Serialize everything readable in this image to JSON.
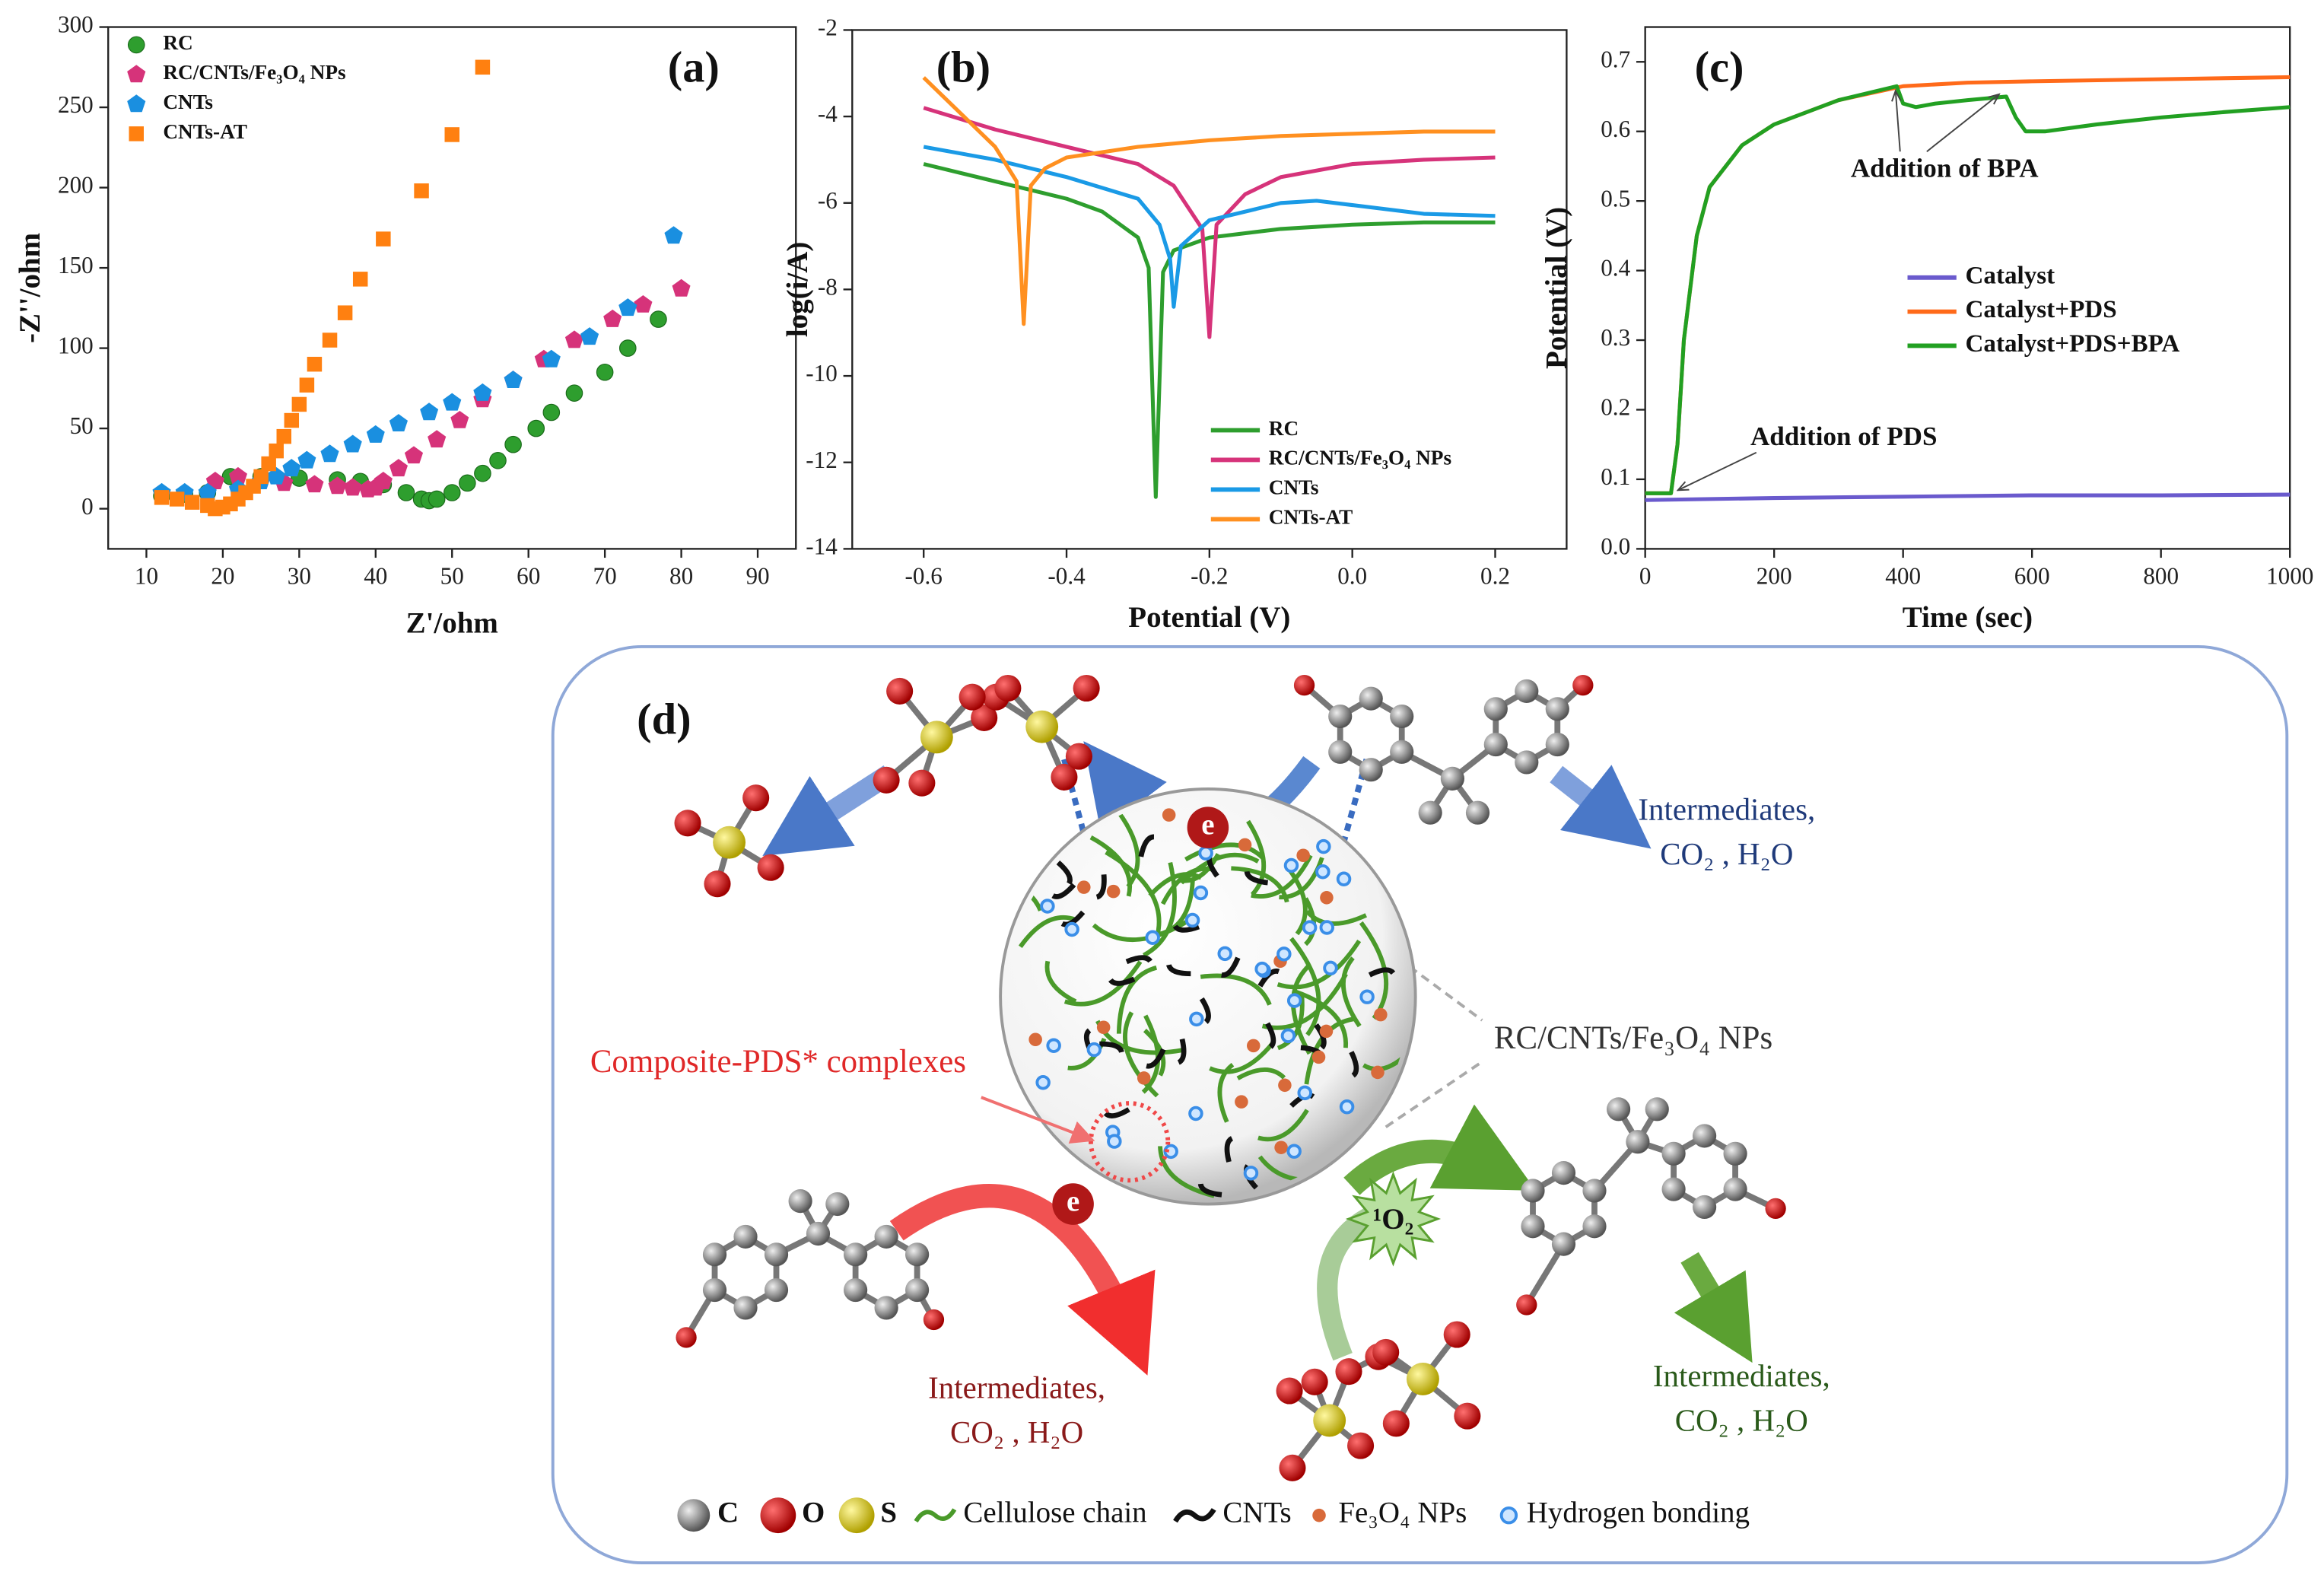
{
  "chart_data": [
    {
      "type": "scatter",
      "panel_label": "(a)",
      "x_label": "Z'/ohm",
      "y_label": "-Z''/ohm",
      "xlim": [
        5,
        95
      ],
      "xticks": [
        10,
        20,
        30,
        40,
        50,
        60,
        70,
        80,
        90
      ],
      "ylim": [
        -25,
        300
      ],
      "yticks": [
        0,
        50,
        100,
        150,
        200,
        250,
        300
      ],
      "legend": "upper left",
      "series": [
        {
          "name": "RC",
          "color": "#2e9e2e",
          "marker": "circle",
          "x": [
            12,
            15,
            18,
            21,
            25,
            30,
            35,
            38,
            41,
            44,
            46,
            47,
            48,
            50,
            52,
            54,
            56,
            58,
            61,
            63,
            66,
            70,
            73,
            77
          ],
          "values": [
            8,
            9,
            10,
            20,
            20,
            19,
            18,
            17,
            15,
            10,
            6,
            5,
            6,
            10,
            16,
            22,
            30,
            40,
            50,
            60,
            72,
            85,
            100,
            118
          ]
        },
        {
          "name": "RC/CNTs/Fe₃O₄ NPs",
          "color": "#d6337a",
          "marker": "pentagon",
          "x": [
            19,
            22,
            25,
            28,
            32,
            35,
            37,
            39,
            40,
            41,
            43,
            45,
            48,
            51,
            54,
            58,
            62,
            66,
            71,
            75,
            80
          ],
          "values": [
            17,
            20,
            17,
            16,
            15,
            14,
            13,
            12,
            13,
            17,
            25,
            33,
            43,
            55,
            68,
            80,
            93,
            105,
            118,
            127,
            137
          ]
        },
        {
          "name": "CNTs",
          "color": "#1a8fe0",
          "marker": "pentagon",
          "x": [
            12,
            15,
            18,
            22,
            25,
            27,
            29,
            31,
            34,
            37,
            40,
            43,
            47,
            50,
            54,
            58,
            63,
            68,
            73,
            79
          ],
          "values": [
            10,
            10,
            10,
            12,
            17,
            20,
            25,
            30,
            34,
            40,
            46,
            53,
            60,
            66,
            72,
            80,
            93,
            107,
            125,
            170
          ]
        },
        {
          "name": "CNTs-AT",
          "color": "#ff8010",
          "marker": "square",
          "x": [
            12,
            14,
            16,
            18,
            19,
            20,
            21,
            22,
            23,
            24,
            25,
            26,
            27,
            28,
            29,
            30,
            31,
            32,
            34,
            36,
            38,
            41,
            46,
            50,
            54
          ],
          "values": [
            7,
            6,
            4,
            2,
            0,
            1,
            3,
            6,
            10,
            14,
            20,
            28,
            36,
            45,
            55,
            65,
            77,
            90,
            105,
            122,
            143,
            168,
            198,
            233,
            275
          ]
        }
      ]
    },
    {
      "type": "line",
      "panel_label": "(b)",
      "x_label": "Potential (V)",
      "y_label": "log(i/A)",
      "xlim": [
        -0.7,
        0.3
      ],
      "xticks": [
        -0.6,
        -0.4,
        -0.2,
        {
          "value": 0,
          "label": "0.0"
        },
        0.2
      ],
      "ylim": [
        -14,
        -2
      ],
      "yticks": [
        -14,
        -12,
        -10,
        -8,
        -6,
        -4,
        -2
      ],
      "legend": "lower right",
      "series": [
        {
          "name": "RC",
          "color": "#2e9e2e",
          "x": [
            -0.6,
            -0.5,
            -0.4,
            -0.35,
            -0.3,
            -0.285,
            -0.275,
            -0.265,
            -0.25,
            -0.2,
            -0.1,
            0,
            0.1,
            0.2
          ],
          "values": [
            -5.1,
            -5.5,
            -5.9,
            -6.2,
            -6.8,
            -7.5,
            -12.8,
            -7.6,
            -7.1,
            -6.8,
            -6.6,
            -6.5,
            -6.45,
            -6.45
          ]
        },
        {
          "name": "RC/CNTs/Fe₃O₄ NPs",
          "color": "#d6337a",
          "x": [
            -0.6,
            -0.5,
            -0.4,
            -0.3,
            -0.25,
            -0.21,
            -0.2,
            -0.19,
            -0.15,
            -0.1,
            0,
            0.1,
            0.2
          ],
          "values": [
            -3.8,
            -4.3,
            -4.7,
            -5.1,
            -5.6,
            -6.6,
            -9.1,
            -6.5,
            -5.8,
            -5.4,
            -5.1,
            -5.0,
            -4.95
          ]
        },
        {
          "name": "CNTs",
          "color": "#1a9ae6",
          "x": [
            -0.6,
            -0.5,
            -0.4,
            -0.3,
            -0.27,
            -0.255,
            -0.25,
            -0.24,
            -0.2,
            -0.1,
            -0.05,
            0,
            0.1,
            0.2
          ],
          "values": [
            -4.7,
            -5.0,
            -5.4,
            -5.9,
            -6.5,
            -7.3,
            -8.4,
            -7.0,
            -6.4,
            -6.0,
            -5.95,
            -6.05,
            -6.25,
            -6.3
          ]
        },
        {
          "name": "CNTs-AT",
          "color": "#ff9020",
          "x": [
            -0.6,
            -0.55,
            -0.5,
            -0.47,
            -0.46,
            -0.45,
            -0.43,
            -0.4,
            -0.3,
            -0.2,
            -0.1,
            0,
            0.1,
            0.2
          ],
          "values": [
            -3.1,
            -3.9,
            -4.7,
            -5.5,
            -8.8,
            -5.6,
            -5.2,
            -4.95,
            -4.7,
            -4.55,
            -4.45,
            -4.4,
            -4.35,
            -4.35
          ]
        }
      ]
    },
    {
      "type": "line",
      "panel_label": "(c)",
      "x_label": "Time (sec)",
      "y_label": "Potential (V)",
      "xlim": [
        0,
        1000
      ],
      "xticks": [
        0,
        200,
        400,
        600,
        800,
        1000
      ],
      "ylim": [
        0,
        0.75
      ],
      "yticks": [
        {
          "value": 0,
          "label": "0.0"
        },
        0.1,
        0.2,
        0.3,
        0.4,
        0.5,
        0.6,
        0.7
      ],
      "legend": "center right",
      "annotations": [
        "Addition of BPA",
        "Addition of PDS"
      ],
      "series": [
        {
          "name": "Catalyst",
          "color": "#6a5acd",
          "x": [
            0,
            200,
            400,
            600,
            800,
            1000
          ],
          "values": [
            0.07,
            0.073,
            0.075,
            0.077,
            0.077,
            0.078
          ]
        },
        {
          "name": "Catalyst+PDS",
          "color": "#ff6a1a",
          "x": [
            0,
            40,
            50,
            60,
            80,
            100,
            150,
            200,
            300,
            400,
            500,
            600,
            800,
            1000
          ],
          "values": [
            0.08,
            0.08,
            0.15,
            0.3,
            0.45,
            0.52,
            0.58,
            0.61,
            0.645,
            0.665,
            0.67,
            0.672,
            0.675,
            0.678
          ]
        },
        {
          "name": "Catalyst+PDS+BPA",
          "color": "#22a022",
          "x": [
            0,
            40,
            50,
            60,
            80,
            100,
            150,
            200,
            300,
            390,
            400,
            420,
            450,
            500,
            560,
            575,
            590,
            620,
            700,
            800,
            900,
            1000
          ],
          "values": [
            0.08,
            0.08,
            0.15,
            0.3,
            0.45,
            0.52,
            0.58,
            0.61,
            0.645,
            0.665,
            0.64,
            0.635,
            0.64,
            0.645,
            0.65,
            0.62,
            0.6,
            0.6,
            0.61,
            0.62,
            0.628,
            0.635
          ]
        }
      ]
    }
  ],
  "diagram": {
    "panel_label": "(d)",
    "outcomes": [
      {
        "line1": "Intermediates,",
        "line2": "CO₂ , H₂O"
      },
      {
        "line1": "Intermediates,",
        "line2": "CO₂ , H₂O"
      },
      {
        "line1": "Intermediates,",
        "line2": "CO₂ , H₂O"
      }
    ],
    "composite_label": "RC/CNTs/Fe₃O₄ NPs",
    "complex_label": "Composite-PDS* complexes",
    "electron": [
      "e",
      "e"
    ],
    "singlet_oxygen": "¹O₂",
    "legend": [
      "C",
      "O",
      "S",
      "Cellulose chain",
      "CNTs",
      "Fe₃O₄ NPs",
      "Hydrogen bonding"
    ]
  }
}
